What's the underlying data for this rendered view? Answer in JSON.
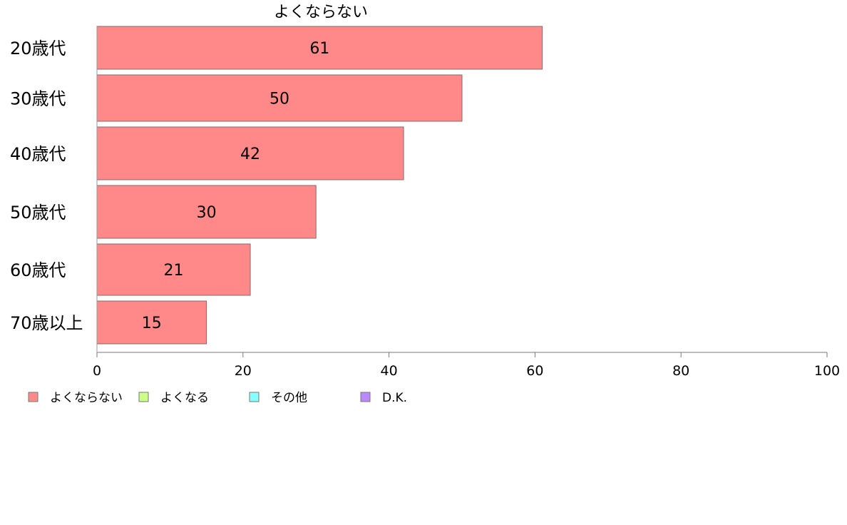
{
  "chart_data": {
    "type": "bar",
    "orientation": "horizontal",
    "title": "よくならない",
    "categories": [
      "20歳代",
      "30歳代",
      "40歳代",
      "50歳代",
      "60歳代",
      "70歳以上"
    ],
    "series": [
      {
        "name": "よくならない",
        "color": "#ff8888",
        "values": [
          61,
          50,
          42,
          30,
          21,
          15
        ]
      }
    ],
    "data_labels": [
      "61",
      "50",
      "42",
      "30",
      "21",
      "15"
    ],
    "xlim": [
      0,
      100
    ],
    "x_ticks": [
      0,
      20,
      40,
      60,
      80,
      100
    ],
    "x_tick_labels": [
      "0",
      "20",
      "40",
      "60",
      "80",
      "100"
    ],
    "grid": false,
    "legend_position": "bottom-left",
    "legend": [
      {
        "label": "よくならない",
        "color": "#ff8888"
      },
      {
        "label": "よくなる",
        "color": "#ccff88"
      },
      {
        "label": "その他",
        "color": "#88ffff"
      },
      {
        "label": "D.K.",
        "color": "#bb88ff"
      }
    ]
  }
}
